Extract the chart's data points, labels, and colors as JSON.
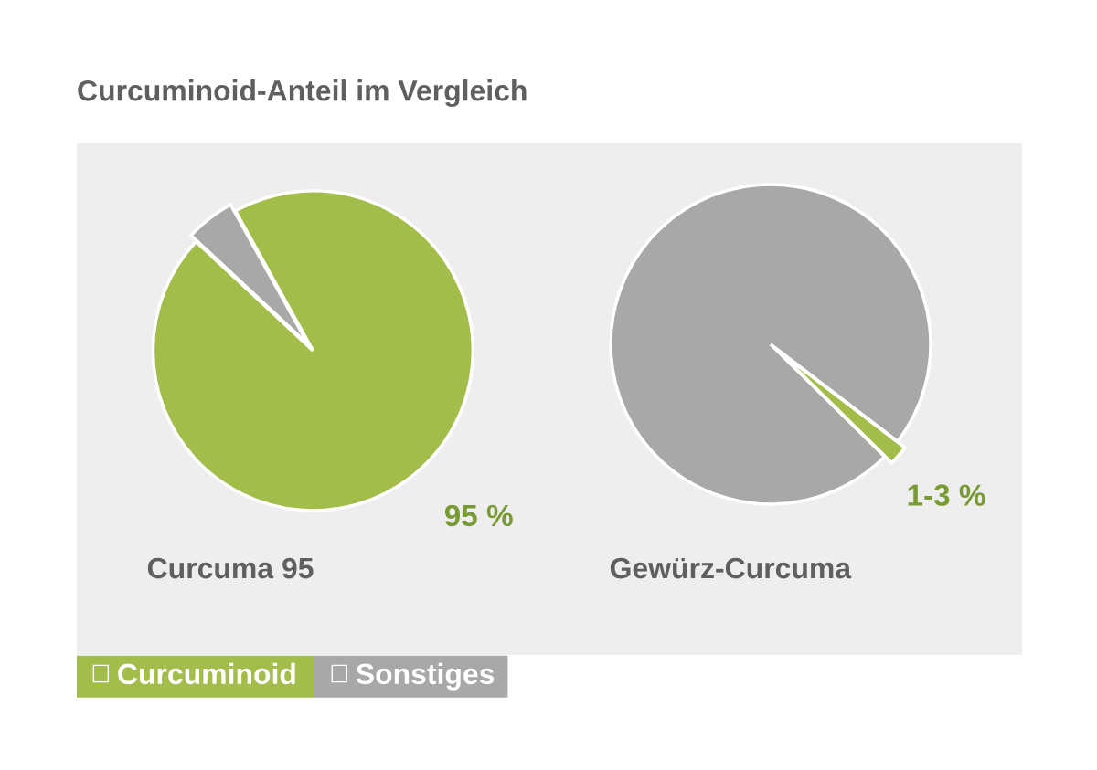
{
  "chart_data": [
    {
      "type": "pie",
      "title": "Curcuma 95",
      "annotations": [
        "Curcuminoid-Anteil im Vergleich"
      ],
      "categories": [
        "Curcuminoid",
        "Sonstiges"
      ],
      "values": [
        95,
        5
      ],
      "colors": [
        "#a3bd4a",
        "#a8a8a7"
      ],
      "value_labels": [
        "95 %",
        null
      ],
      "legend": "bottom left"
    },
    {
      "type": "pie",
      "title": "Gewürz-Curcuma",
      "annotations": [
        "1-3 %"
      ],
      "categories": [
        null,
        null
      ],
      "values": [
        2,
        98
      ],
      "colors": [
        "#a3bd4a",
        "#a8a8a7"
      ]
    }
  ]
}
